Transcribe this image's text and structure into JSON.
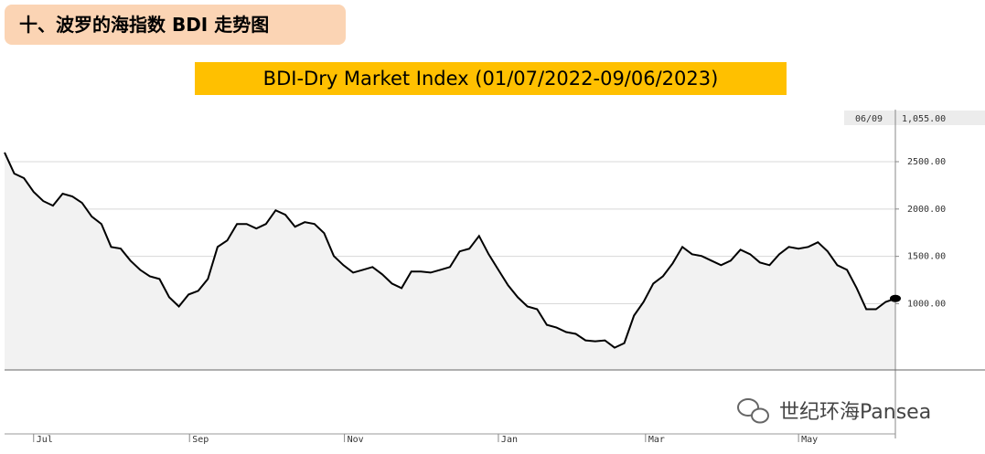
{
  "header": {
    "title": "十、波罗的海指数 BDI 走势图"
  },
  "chart_data": {
    "type": "line",
    "title": "BDI-Dry Market Index (01/07/2022-09/06/2023)",
    "values": [
      2597,
      2375,
      2326,
      2181,
      2084,
      2036,
      2162,
      2132,
      2065,
      1920,
      1842,
      1600,
      1581,
      1455,
      1358,
      1290,
      1261,
      1068,
      971,
      1097,
      1136,
      1261,
      1600,
      1668,
      1842,
      1842,
      1794,
      1842,
      1987,
      1939,
      1813,
      1861,
      1842,
      1745,
      1503,
      1407,
      1329,
      1358,
      1387,
      1310,
      1213,
      1165,
      1339,
      1339,
      1329,
      1358,
      1387,
      1552,
      1581,
      1716,
      1523,
      1358,
      1194,
      1068,
      971,
      942,
      777,
      748,
      700,
      681,
      613,
      603,
      613,
      535,
      584,
      874,
      1019,
      1213,
      1290,
      1426,
      1600,
      1523,
      1503,
      1455,
      1407,
      1455,
      1571,
      1523,
      1436,
      1407,
      1523,
      1600,
      1581,
      1600,
      1649,
      1552,
      1407,
      1358,
      1165,
      942,
      942,
      1019,
      1055
    ],
    "color": "#000000",
    "xlim": [
      0,
      92
    ],
    "xticks": [
      {
        "value": 3.0,
        "label": "Jul"
      },
      {
        "value": 19.1,
        "label": "Sep"
      },
      {
        "value": 35.1,
        "label": "Nov"
      },
      {
        "value": 51.0,
        "label": "Jan"
      },
      {
        "value": 66.2,
        "label": "Mar"
      },
      {
        "value": 82.0,
        "label": "May"
      }
    ],
    "ylim": [
      300,
      3050
    ],
    "yticks": [
      {
        "value": 1000,
        "label": "1000.00"
      },
      {
        "value": 1500,
        "label": "1500.00"
      },
      {
        "value": 2000,
        "label": "2000.00"
      },
      {
        "value": 2500,
        "label": "2500.00"
      }
    ],
    "grid": true,
    "last_point": {
      "date_label": "06/09",
      "value_label": "1,055.00"
    }
  },
  "watermark": "世纪环海Pansea"
}
